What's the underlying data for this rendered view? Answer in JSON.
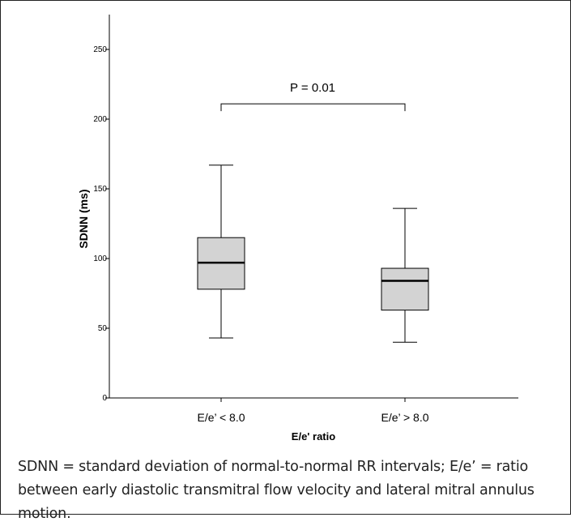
{
  "chart_data": {
    "type": "box",
    "xlabel": "E/e' ratio",
    "ylabel": "SDNN (ms)",
    "ylim": [
      0,
      275
    ],
    "yticks": [
      0,
      50,
      100,
      150,
      200,
      250
    ],
    "grid": false,
    "categories": [
      "E/e’ < 8.0",
      "E/e’ > 8.0"
    ],
    "boxes": [
      {
        "category": "E/e’ < 8.0",
        "min": 43,
        "q1": 78,
        "median": 97,
        "q3": 115,
        "max": 167
      },
      {
        "category": "E/e’ > 8.0",
        "min": 40,
        "q1": 63,
        "median": 84,
        "q3": 93,
        "max": 136
      }
    ],
    "annotation": {
      "text": "P = 0.01",
      "bracket_y": 211
    },
    "box_fill": "#d3d3d3"
  },
  "caption": "SDNN = standard deviation of normal-to-normal RR intervals; E/e’ = ratio between early diastolic transmitral flow velocity and lateral mitral annulus motion."
}
